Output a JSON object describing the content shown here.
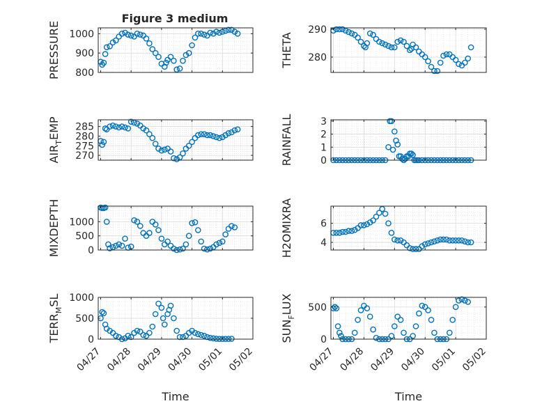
{
  "figure_title": "Figure 3 medium",
  "colors": {
    "marker": "#0072BD",
    "axis": "#262626",
    "grid": "#D9D9D9",
    "background": "#FFFFFF"
  },
  "chart_data": [
    {
      "type": "scatter",
      "ylabel": "PRESSURE",
      "xlabel": "",
      "title": "Figure 3 medium",
      "x": [
        0.0,
        0.05,
        0.1,
        0.15,
        0.2,
        0.3,
        0.4,
        0.5,
        0.6,
        0.7,
        0.8,
        0.9,
        1.0,
        1.1,
        1.2,
        1.3,
        1.4,
        1.5,
        1.6,
        1.7,
        1.8,
        1.9,
        2.0,
        2.1,
        2.15,
        2.2,
        2.3,
        2.4,
        2.5,
        2.6,
        2.7,
        2.8,
        2.9,
        3.0,
        3.1,
        3.2,
        3.3,
        3.4,
        3.5,
        3.6,
        3.7,
        3.8,
        3.9,
        4.0,
        4.1,
        4.2,
        4.3,
        4.4,
        4.5
      ],
      "y": [
        855,
        840,
        850,
        895,
        930,
        935,
        955,
        965,
        985,
        1000,
        1005,
        995,
        990,
        985,
        1000,
        995,
        990,
        975,
        950,
        920,
        900,
        880,
        845,
        830,
        850,
        865,
        880,
        860,
        815,
        820,
        860,
        890,
        900,
        940,
        980,
        1000,
        1000,
        995,
        990,
        1005,
        1000,
        1010,
        1005,
        1010,
        1015,
        1020,
        1020,
        1010,
        1000
      ],
      "xlim": [
        -0.08,
        5.0
      ],
      "ylim": [
        800,
        1030
      ],
      "yticks": [
        800,
        900,
        1000
      ],
      "grid": true
    },
    {
      "type": "scatter",
      "ylabel": "THETA",
      "xlabel": "",
      "x": [
        0.0,
        0.1,
        0.2,
        0.3,
        0.4,
        0.5,
        0.6,
        0.7,
        0.8,
        0.9,
        1.0,
        1.05,
        1.1,
        1.2,
        1.3,
        1.4,
        1.5,
        1.6,
        1.7,
        1.8,
        1.9,
        2.0,
        2.1,
        2.2,
        2.3,
        2.4,
        2.5,
        2.55,
        2.6,
        2.7,
        2.8,
        2.9,
        3.0,
        3.1,
        3.2,
        3.3,
        3.4,
        3.5,
        3.6,
        3.7,
        3.8,
        3.9,
        4.0,
        4.1,
        4.2,
        4.3,
        4.4,
        4.5
      ],
      "y": [
        289.5,
        290.0,
        290.0,
        290.0,
        289.5,
        289.0,
        288.5,
        288.0,
        287.0,
        285.5,
        284.0,
        283.5,
        285.0,
        288.5,
        288.0,
        286.5,
        285.5,
        285.0,
        284.5,
        284.0,
        283.5,
        283.5,
        285.5,
        286.0,
        285.5,
        284.0,
        282.5,
        283.0,
        284.5,
        283.5,
        282.0,
        281.0,
        280.0,
        278.5,
        276.5,
        275.0,
        275.0,
        278.0,
        280.5,
        281.0,
        281.0,
        280.0,
        279.0,
        277.5,
        277.0,
        278.0,
        279.5,
        283.5
      ],
      "xlim": [
        -0.08,
        5.0
      ],
      "ylim": [
        274.5,
        290.5
      ],
      "yticks": [
        280,
        290
      ],
      "grid": true
    },
    {
      "type": "scatter",
      "ylabel": "AIR_TEMP",
      "xlabel": "",
      "x": [
        0.0,
        0.05,
        0.1,
        0.15,
        0.2,
        0.3,
        0.4,
        0.5,
        0.6,
        0.7,
        0.8,
        0.9,
        1.0,
        1.1,
        1.2,
        1.3,
        1.4,
        1.5,
        1.6,
        1.7,
        1.8,
        1.9,
        2.0,
        2.1,
        2.2,
        2.3,
        2.4,
        2.5,
        2.6,
        2.7,
        2.8,
        2.9,
        3.0,
        3.1,
        3.2,
        3.3,
        3.4,
        3.5,
        3.6,
        3.7,
        3.8,
        3.9,
        4.0,
        4.1,
        4.2,
        4.3,
        4.4,
        4.5
      ],
      "y": [
        277.5,
        275.5,
        277.0,
        284.0,
        283.5,
        285.0,
        285.5,
        285.0,
        284.5,
        285.0,
        284.5,
        284.0,
        287.5,
        287.0,
        286.5,
        285.5,
        284.0,
        283.0,
        281.0,
        279.0,
        276.0,
        273.5,
        272.5,
        273.0,
        273.5,
        272.0,
        268.5,
        268.0,
        269.0,
        271.0,
        273.5,
        275.0,
        277.0,
        279.0,
        280.5,
        281.0,
        281.0,
        280.5,
        280.5,
        280.0,
        279.5,
        279.0,
        279.5,
        280.5,
        281.5,
        282.0,
        283.0,
        283.5
      ],
      "xlim": [
        -0.08,
        5.0
      ],
      "ylim": [
        267.5,
        288.5
      ],
      "yticks": [
        270,
        275,
        280,
        285
      ],
      "grid": true
    },
    {
      "type": "scatter",
      "ylabel": "RAINFALL",
      "xlabel": "",
      "x": [
        0.0,
        0.1,
        0.2,
        0.3,
        0.4,
        0.5,
        0.6,
        0.7,
        0.8,
        0.9,
        1.0,
        1.1,
        1.2,
        1.3,
        1.4,
        1.5,
        1.6,
        1.7,
        1.8,
        1.85,
        1.9,
        1.95,
        2.0,
        2.05,
        2.1,
        2.15,
        2.2,
        2.25,
        2.3,
        2.35,
        2.4,
        2.45,
        2.5,
        2.55,
        2.6,
        2.65,
        2.7,
        2.75,
        2.8,
        2.9,
        3.0,
        3.1,
        3.2,
        3.3,
        3.4,
        3.5,
        3.6,
        3.7,
        3.8,
        3.9,
        4.0,
        4.1,
        4.2,
        4.3,
        4.4,
        4.5
      ],
      "y": [
        0,
        0,
        0,
        0,
        0,
        0,
        0,
        0,
        0,
        0,
        0,
        0,
        0,
        0,
        0,
        0,
        0,
        0,
        1.0,
        3.0,
        3.0,
        0.8,
        2.2,
        1.5,
        1.2,
        0.3,
        0.3,
        0.1,
        0,
        0.1,
        0.3,
        0.3,
        0.5,
        0.5,
        0.4,
        0,
        0,
        0,
        0,
        0,
        0,
        0,
        0,
        0,
        0,
        0,
        0,
        0,
        0,
        0,
        0,
        0,
        0,
        0,
        0,
        0
      ],
      "xlim": [
        -0.08,
        5.0
      ],
      "ylim": [
        0,
        3.1
      ],
      "yticks": [
        0,
        1,
        2,
        3
      ],
      "grid": true
    },
    {
      "type": "scatter",
      "ylabel": "MIXDEPTH",
      "xlabel": "",
      "x": [
        0.0,
        0.05,
        0.1,
        0.15,
        0.2,
        0.25,
        0.3,
        0.4,
        0.5,
        0.6,
        0.7,
        0.8,
        0.9,
        1.0,
        1.1,
        1.2,
        1.3,
        1.4,
        1.5,
        1.6,
        1.7,
        1.8,
        1.9,
        2.0,
        2.1,
        2.2,
        2.3,
        2.4,
        2.5,
        2.6,
        2.7,
        2.8,
        2.9,
        3.0,
        3.1,
        3.2,
        3.3,
        3.4,
        3.5,
        3.6,
        3.7,
        3.8,
        3.9,
        4.0,
        4.1,
        4.2,
        4.3,
        4.4
      ],
      "y": [
        1500,
        1480,
        1480,
        1500,
        1000,
        200,
        60,
        100,
        150,
        200,
        150,
        400,
        80,
        120,
        1050,
        1000,
        850,
        600,
        500,
        600,
        1000,
        900,
        700,
        400,
        200,
        300,
        150,
        50,
        0,
        20,
        50,
        200,
        500,
        950,
        980,
        700,
        300,
        50,
        20,
        50,
        100,
        200,
        250,
        300,
        550,
        750,
        850,
        800
      ],
      "xlim": [
        -0.08,
        5.0
      ],
      "ylim": [
        0,
        1550
      ],
      "yticks": [
        0,
        500,
        1000
      ],
      "grid": true
    },
    {
      "type": "scatter",
      "ylabel": "H2OMIXRA",
      "xlabel": "",
      "x": [
        0.0,
        0.1,
        0.2,
        0.3,
        0.4,
        0.5,
        0.6,
        0.7,
        0.8,
        0.9,
        1.0,
        1.1,
        1.2,
        1.3,
        1.4,
        1.5,
        1.6,
        1.7,
        1.8,
        1.9,
        2.0,
        2.1,
        2.2,
        2.3,
        2.4,
        2.5,
        2.6,
        2.7,
        2.8,
        2.9,
        3.0,
        3.1,
        3.2,
        3.3,
        3.4,
        3.5,
        3.6,
        3.7,
        3.8,
        3.9,
        4.0,
        4.1,
        4.2,
        4.3,
        4.4,
        4.5
      ],
      "y": [
        5.0,
        5.0,
        5.0,
        5.1,
        5.1,
        5.2,
        5.2,
        5.3,
        5.5,
        5.8,
        5.8,
        5.9,
        6.1,
        6.3,
        6.7,
        7.1,
        7.5,
        7.0,
        6.0,
        5.0,
        4.3,
        4.2,
        4.2,
        4.0,
        3.7,
        3.4,
        3.3,
        3.3,
        3.3,
        3.6,
        3.8,
        3.9,
        4.0,
        4.1,
        4.2,
        4.3,
        4.3,
        4.3,
        4.2,
        4.2,
        4.2,
        4.2,
        4.2,
        4.1,
        4.0,
        4.0
      ],
      "xlim": [
        -0.08,
        5.0
      ],
      "ylim": [
        3.2,
        7.8
      ],
      "yticks": [
        4,
        6
      ],
      "grid": true
    },
    {
      "type": "scatter",
      "ylabel": "TERR_MSL",
      "xlabel": "Time",
      "x": [
        0.0,
        0.05,
        0.1,
        0.15,
        0.2,
        0.3,
        0.4,
        0.5,
        0.6,
        0.7,
        0.8,
        0.9,
        1.0,
        1.1,
        1.2,
        1.3,
        1.4,
        1.5,
        1.6,
        1.7,
        1.8,
        1.9,
        2.0,
        2.05,
        2.1,
        2.2,
        2.25,
        2.3,
        2.4,
        2.5,
        2.6,
        2.7,
        2.8,
        2.9,
        3.0,
        3.1,
        3.2,
        3.3,
        3.4,
        3.5,
        3.6,
        3.7,
        3.8,
        3.9,
        4.0,
        4.1,
        4.2,
        4.3
      ],
      "y": [
        500,
        650,
        620,
        350,
        250,
        200,
        150,
        80,
        50,
        0,
        20,
        80,
        50,
        150,
        200,
        180,
        100,
        80,
        150,
        300,
        600,
        850,
        750,
        500,
        350,
        600,
        700,
        800,
        500,
        200,
        50,
        50,
        80,
        150,
        200,
        150,
        120,
        100,
        80,
        50,
        30,
        20,
        10,
        5,
        5,
        5,
        5,
        10
      ],
      "xlim": [
        -0.08,
        5.0
      ],
      "ylim": [
        0,
        1000
      ],
      "yticks": [
        0,
        500,
        1000
      ],
      "xticks": [
        0,
        1,
        2,
        3,
        4,
        5
      ],
      "xticklabels": [
        "04/27",
        "04/28",
        "04/29",
        "04/30",
        "05/01",
        "05/02"
      ],
      "grid": true
    },
    {
      "type": "scatter",
      "ylabel": "SUN_FLUX",
      "xlabel": "Time",
      "x": [
        0.0,
        0.05,
        0.1,
        0.15,
        0.2,
        0.25,
        0.3,
        0.4,
        0.5,
        0.6,
        0.7,
        0.8,
        0.9,
        1.0,
        1.1,
        1.2,
        1.3,
        1.4,
        1.5,
        1.6,
        1.7,
        1.8,
        1.9,
        2.0,
        2.1,
        2.2,
        2.3,
        2.4,
        2.5,
        2.6,
        2.7,
        2.8,
        2.9,
        3.0,
        3.1,
        3.2,
        3.3,
        3.4,
        3.5,
        3.6,
        3.7,
        3.8,
        3.9,
        4.0,
        4.1,
        4.2,
        4.3,
        4.4
      ],
      "y": [
        480,
        500,
        480,
        200,
        100,
        50,
        0,
        0,
        0,
        0,
        100,
        300,
        450,
        520,
        480,
        350,
        150,
        20,
        0,
        0,
        0,
        0,
        50,
        200,
        350,
        300,
        100,
        0,
        0,
        50,
        200,
        400,
        520,
        500,
        450,
        300,
        100,
        0,
        0,
        0,
        0,
        100,
        300,
        500,
        600,
        620,
        600,
        580
      ],
      "xlim": [
        -0.08,
        5.0
      ],
      "ylim": [
        0,
        650
      ],
      "yticks": [
        0,
        500
      ],
      "xticks": [
        0,
        1,
        2,
        3,
        4,
        5
      ],
      "xticklabels": [
        "04/27",
        "04/28",
        "04/29",
        "04/30",
        "05/01",
        "05/02"
      ],
      "grid": true
    }
  ]
}
